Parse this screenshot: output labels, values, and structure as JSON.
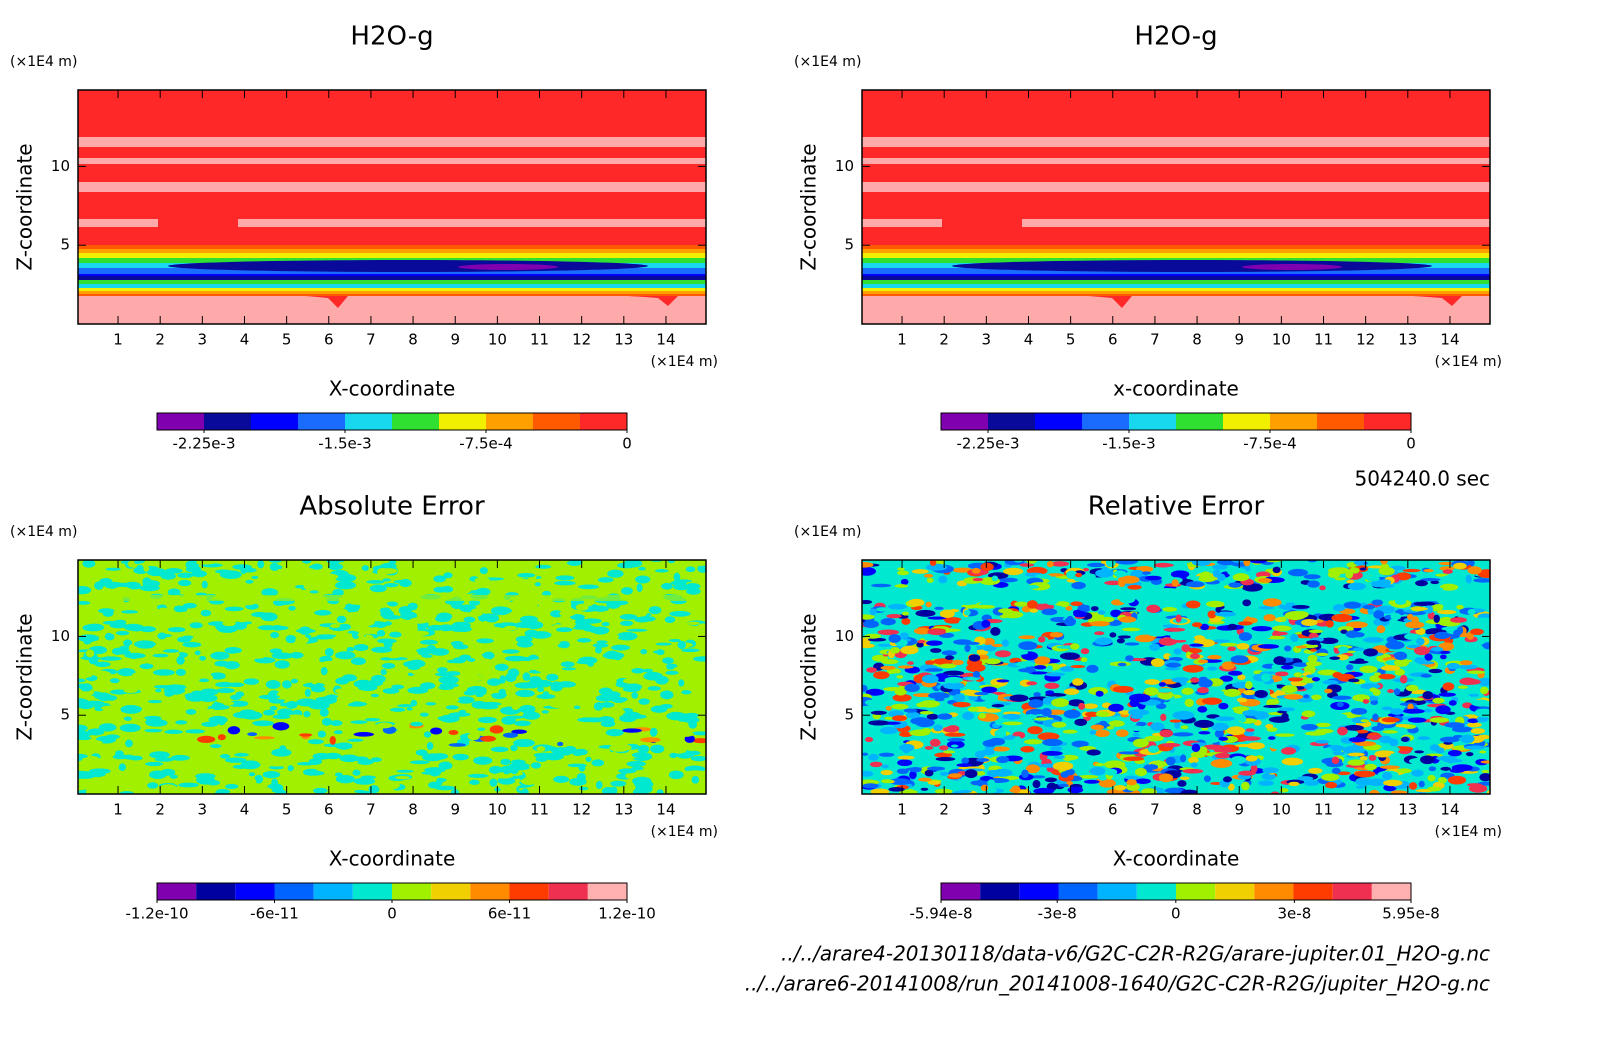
{
  "chart_data": [
    {
      "type": "contour",
      "title": "H2O-g",
      "xlabel": "X-coordinate",
      "ylabel": "Z-coordinate",
      "xunit": "(×1E4 m)",
      "yunit": "(×1E4 m)",
      "xlim": [
        0.05,
        14.95
      ],
      "ylim": [
        0,
        14.85
      ],
      "xticks": [
        1,
        2,
        3,
        4,
        5,
        6,
        7,
        8,
        9,
        10,
        11,
        12,
        13,
        14
      ],
      "yticks": [
        5,
        10
      ],
      "colorbar": {
        "clim": [
          -0.0025,
          0
        ],
        "colors": [
          "#8000b0",
          "#0a0a9a",
          "#0000ff",
          "#1a6cff",
          "#18d8f0",
          "#30e030",
          "#f0f000",
          "#ffa000",
          "#ff5a00",
          "#ff2828"
        ],
        "ticks": [
          {
            "value": -0.00225,
            "label": "-2.25e-3"
          },
          {
            "value": -0.0015,
            "label": "-1.5e-3"
          },
          {
            "value": -0.00075,
            "label": "-7.5e-4"
          },
          0
        ]
      }
    },
    {
      "type": "contour",
      "title": "H2O-g",
      "xlabel": "x-coordinate",
      "ylabel": "Z-coordinate",
      "xunit": "(×1E4 m)",
      "yunit": "(×1E4 m)",
      "xlim": [
        0.05,
        14.95
      ],
      "ylim": [
        0,
        14.85
      ],
      "xticks": [
        1,
        2,
        3,
        4,
        5,
        6,
        7,
        8,
        9,
        10,
        11,
        12,
        13,
        14
      ],
      "yticks": [
        5,
        10
      ],
      "colorbar": {
        "clim": [
          -0.0025,
          0
        ],
        "colors": [
          "#8000b0",
          "#0a0a9a",
          "#0000ff",
          "#1a6cff",
          "#18d8f0",
          "#30e030",
          "#f0f000",
          "#ffa000",
          "#ff5a00",
          "#ff2828"
        ],
        "ticks": [
          {
            "value": -0.00225,
            "label": "-2.25e-3"
          },
          {
            "value": -0.0015,
            "label": "-1.5e-3"
          },
          {
            "value": -0.00075,
            "label": "-7.5e-4"
          },
          0
        ]
      }
    },
    {
      "type": "contour",
      "title": "Absolute Error",
      "xlabel": "X-coordinate",
      "ylabel": "Z-coordinate",
      "xunit": "(×1E4 m)",
      "yunit": "(×1E4 m)",
      "xlim": [
        0.05,
        14.95
      ],
      "ylim": [
        0,
        14.85
      ],
      "xticks": [
        1,
        2,
        3,
        4,
        5,
        6,
        7,
        8,
        9,
        10,
        11,
        12,
        13,
        14
      ],
      "yticks": [
        5,
        10
      ],
      "colorbar": {
        "clim": [
          -1.2e-10,
          1.2e-10
        ],
        "colors": [
          "#8000b0",
          "#0000a0",
          "#0000ff",
          "#0064ff",
          "#00b4ff",
          "#00e8d0",
          "#a0f000",
          "#f0d000",
          "#ff8c00",
          "#ff3c00",
          "#f03050",
          "#ffb0b0"
        ],
        "ticks": [
          {
            "value": -1.2e-10,
            "label": "-1.2e-10"
          },
          {
            "value": -6e-11,
            "label": "-6e-11"
          },
          0,
          {
            "value": 6e-11,
            "label": "6e-11"
          },
          {
            "value": 1.2e-10,
            "label": "1.2e-10"
          }
        ]
      }
    },
    {
      "type": "contour",
      "title": "Relative Error",
      "xlabel": "X-coordinate",
      "ylabel": "Z-coordinate",
      "xunit": "(×1E4 m)",
      "yunit": "(×1E4 m)",
      "xlim": [
        0.05,
        14.95
      ],
      "ylim": [
        0,
        14.85
      ],
      "xticks": [
        1,
        2,
        3,
        4,
        5,
        6,
        7,
        8,
        9,
        10,
        11,
        12,
        13,
        14
      ],
      "yticks": [
        5,
        10
      ],
      "colorbar": {
        "clim": [
          -5.94e-08,
          5.95e-08
        ],
        "colors": [
          "#8000b0",
          "#0000a0",
          "#0000ff",
          "#0064ff",
          "#00b4ff",
          "#00e8d0",
          "#a0f000",
          "#f0d000",
          "#ff8c00",
          "#ff3c00",
          "#f03050",
          "#ffb0b0"
        ],
        "ticks": [
          {
            "value": -5.94e-08,
            "label": "-5.94e-8"
          },
          {
            "value": -3e-08,
            "label": "-3e-8"
          },
          0,
          {
            "value": 3e-08,
            "label": "3e-8"
          },
          {
            "value": 5.95e-08,
            "label": "5.95e-8"
          }
        ]
      }
    }
  ],
  "time": "504240.0 sec",
  "files": [
    "../../arare4-20130118/data-v6/G2C-C2R-R2G/arare-jupiter.01_H2O-g.nc",
    "../../arare6-20141008/run_20141008-1640/G2C-C2R-R2G/jupiter_H2O-g.nc"
  ]
}
